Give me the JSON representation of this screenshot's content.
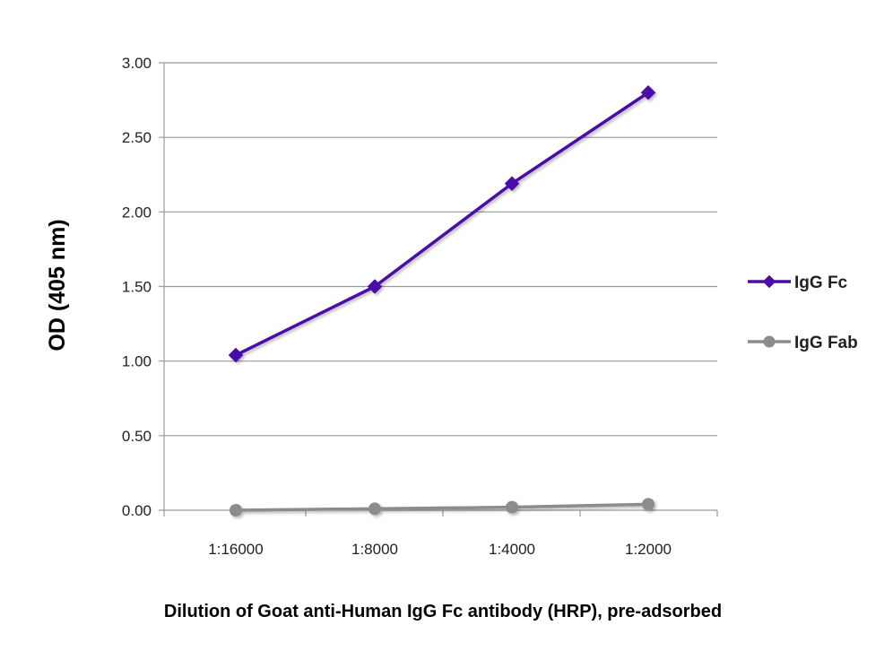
{
  "chart_data": {
    "type": "line",
    "title": "",
    "xlabel": "Dilution of Goat anti-Human IgG Fc antibody (HRP), pre-adsorbed",
    "ylabel": "OD (405 nm)",
    "categories": [
      "1:16000",
      "1:8000",
      "1:4000",
      "1:2000"
    ],
    "ylim": [
      0,
      3.0
    ],
    "yticks": [
      "0.00",
      "0.50",
      "1.00",
      "1.50",
      "2.00",
      "2.50",
      "3.00"
    ],
    "grid": true,
    "legend_position": "right",
    "series": [
      {
        "name": "IgG Fc",
        "values": [
          1.04,
          1.5,
          2.19,
          2.8
        ],
        "color": "#4B0FA8",
        "marker": "diamond"
      },
      {
        "name": "IgG Fab",
        "values": [
          0.0,
          0.01,
          0.02,
          0.04
        ],
        "color": "#8C8C8C",
        "marker": "circle"
      }
    ]
  }
}
